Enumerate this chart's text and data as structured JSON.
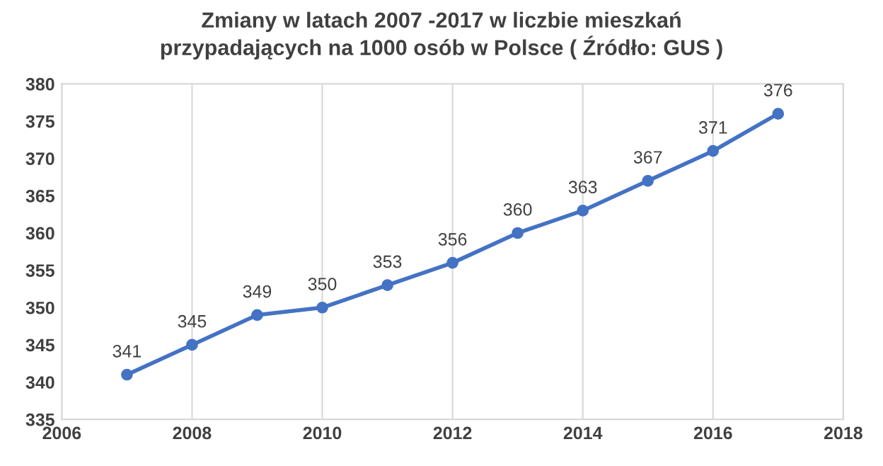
{
  "chart_data": {
    "type": "line",
    "title": "Zmiany w latach 2007 -2017 w liczbie mieszkań\nprzypadających na 1000 osób w Polsce ( Źródło: GUS )",
    "x": [
      2007,
      2008,
      2009,
      2010,
      2011,
      2012,
      2013,
      2014,
      2015,
      2016,
      2017
    ],
    "series": [
      {
        "color": "#4472c4",
        "values": [
          341,
          345,
          349,
          350,
          353,
          356,
          360,
          363,
          367,
          371,
          376
        ]
      }
    ],
    "xlim": [
      2006,
      2018
    ],
    "xticks": [
      2006,
      2008,
      2010,
      2012,
      2014,
      2016,
      2018
    ],
    "ylim": [
      335,
      380
    ],
    "yticks": [
      335,
      340,
      345,
      350,
      355,
      360,
      365,
      370,
      375,
      380
    ],
    "grid": "x",
    "marker": "circle",
    "data_labels": true
  }
}
